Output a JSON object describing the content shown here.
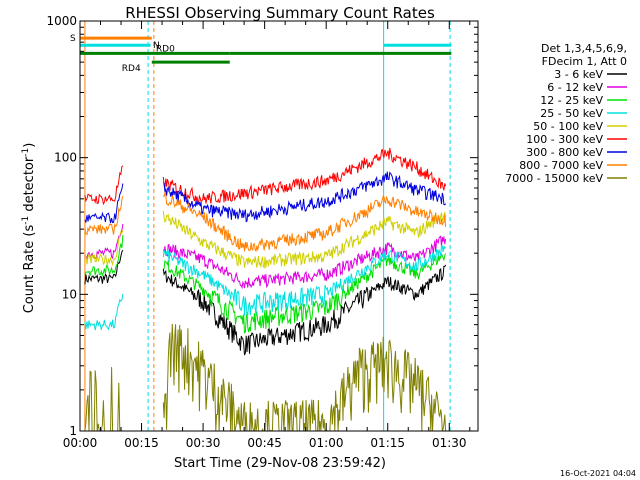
{
  "chart_data": {
    "type": "line",
    "title": "RHESSI Observing Summary Count Rates",
    "xlabel": "Start Time (29-Nov-08 23:59:42)",
    "ylabel": "Count Rate (s",
    "ylabel_sup": "-1",
    "ylabel_mid": " detector",
    "ylabel_end": ")",
    "y_scale": "log",
    "ylim": [
      1,
      1000
    ],
    "xlim_minutes": [
      0,
      97
    ],
    "x_ticks": [
      {
        "minutes": 0,
        "label": "00:00"
      },
      {
        "minutes": 15,
        "label": "00:15"
      },
      {
        "minutes": 30,
        "label": "00:30"
      },
      {
        "minutes": 45,
        "label": "00:45"
      },
      {
        "minutes": 60,
        "label": "01:00"
      },
      {
        "minutes": 75,
        "label": "01:15"
      },
      {
        "minutes": 90,
        "label": "01:30"
      }
    ],
    "y_ticks": [
      {
        "value": 1,
        "label": "1"
      },
      {
        "value": 10,
        "label": "10"
      },
      {
        "value": 100,
        "label": "100"
      },
      {
        "value": 1000,
        "label": "1000"
      }
    ],
    "legend_placement": "top-right",
    "legend_header": [
      "Det 1,3,4,5,6,9,",
      "FDecim 1, Att 0"
    ],
    "timestamp": "16-Oct-2021 04:04",
    "segments": [
      [
        1.2,
        10.5
      ],
      [
        20.3,
        89.2
      ]
    ],
    "series": [
      {
        "name": "3 - 6 keV",
        "color": "#000000",
        "left_level": 13,
        "data": [
          [
            20.3,
            14
          ],
          [
            30,
            9
          ],
          [
            40,
            4.3
          ],
          [
            60,
            6
          ],
          [
            75,
            12.5
          ],
          [
            82,
            10
          ],
          [
            89.2,
            15
          ]
        ]
      },
      {
        "name": "6 - 12 keV",
        "color": "#e000e0",
        "left_level": 20,
        "data": [
          [
            20.3,
            22
          ],
          [
            30,
            18
          ],
          [
            40,
            12.2
          ],
          [
            60,
            14
          ],
          [
            75,
            22
          ],
          [
            82,
            18
          ],
          [
            89.2,
            26
          ]
        ]
      },
      {
        "name": "12 - 25 keV",
        "color": "#00e000",
        "left_level": 15,
        "data": [
          [
            20.3,
            17
          ],
          [
            30,
            11
          ],
          [
            40,
            6.3
          ],
          [
            60,
            8
          ],
          [
            75,
            18
          ],
          [
            82,
            14
          ],
          [
            89.2,
            20
          ]
        ]
      },
      {
        "name": "25 - 50 keV",
        "color": "#00e0e0",
        "left_level": 6,
        "data": [
          [
            20.3,
            20
          ],
          [
            30,
            14
          ],
          [
            40,
            8.4
          ],
          [
            60,
            10
          ],
          [
            75,
            20
          ],
          [
            82,
            16
          ],
          [
            89.2,
            22
          ]
        ]
      },
      {
        "name": "50 - 100 keV",
        "color": "#d0d000",
        "left_level": 18,
        "data": [
          [
            20.3,
            38
          ],
          [
            30,
            24
          ],
          [
            40,
            17
          ],
          [
            60,
            19
          ],
          [
            75,
            34
          ],
          [
            82,
            28
          ],
          [
            89.2,
            40
          ]
        ]
      },
      {
        "name": "100 - 300 keV",
        "color": "#ff0000",
        "left_level": 50,
        "data": [
          [
            20.3,
            66
          ],
          [
            30,
            50
          ],
          [
            40,
            55
          ],
          [
            60,
            68
          ],
          [
            75,
            108
          ],
          [
            82,
            85
          ],
          [
            89.2,
            60
          ]
        ]
      },
      {
        "name": "300 - 800 keV",
        "color": "#0000e0",
        "left_level": 36,
        "data": [
          [
            20.3,
            60
          ],
          [
            30,
            42
          ],
          [
            40,
            38
          ],
          [
            60,
            48
          ],
          [
            75,
            72
          ],
          [
            82,
            58
          ],
          [
            89.2,
            50
          ]
        ]
      },
      {
        "name": "800 - 7000 keV",
        "color": "#ff8000",
        "left_level": 30,
        "data": [
          [
            20.3,
            52
          ],
          [
            30,
            37
          ],
          [
            40,
            22
          ],
          [
            60,
            28
          ],
          [
            75,
            50
          ],
          [
            82,
            40
          ],
          [
            89.2,
            35
          ]
        ]
      },
      {
        "name": "7000 - 15000 keV",
        "color": "#808000",
        "left_level": 1,
        "data": [
          [
            20.3,
            1
          ],
          [
            22,
            4
          ],
          [
            26,
            3.5
          ],
          [
            30,
            2.5
          ],
          [
            40,
            1
          ],
          [
            60,
            1
          ],
          [
            68,
            2.5
          ],
          [
            75,
            3
          ],
          [
            82,
            2
          ],
          [
            89.2,
            1
          ]
        ]
      }
    ],
    "flags": [
      {
        "label": "S",
        "color": "#ff8000",
        "level": 750,
        "segments": [
          [
            0,
            17.5
          ]
        ]
      },
      {
        "label": "N",
        "color": "#00e0e0",
        "level": 665,
        "segments": [
          [
            0,
            17.2
          ],
          [
            74,
            90.5
          ]
        ]
      },
      {
        "label": "RD0",
        "color": "#008000",
        "level": 580,
        "segments": [
          [
            0,
            36.5
          ],
          [
            36.5,
            90.5
          ]
        ]
      },
      {
        "label": "RD4",
        "color": "#008000",
        "level": 500,
        "segments": [
          [
            17.5,
            36.5
          ]
        ]
      }
    ],
    "vertical_markers": [
      {
        "minutes": 1.2,
        "color": "#ff8000",
        "style": "solid"
      },
      {
        "minutes": 16.6,
        "color": "#00e0e0",
        "style": "dashed"
      },
      {
        "minutes": 18.0,
        "color": "#ff8000",
        "style": "dashed"
      },
      {
        "minutes": 74.0,
        "color": "#00e0e0",
        "style": "solid"
      },
      {
        "minutes": 90.2,
        "color": "#00e0e0",
        "style": "dashed"
      }
    ]
  }
}
